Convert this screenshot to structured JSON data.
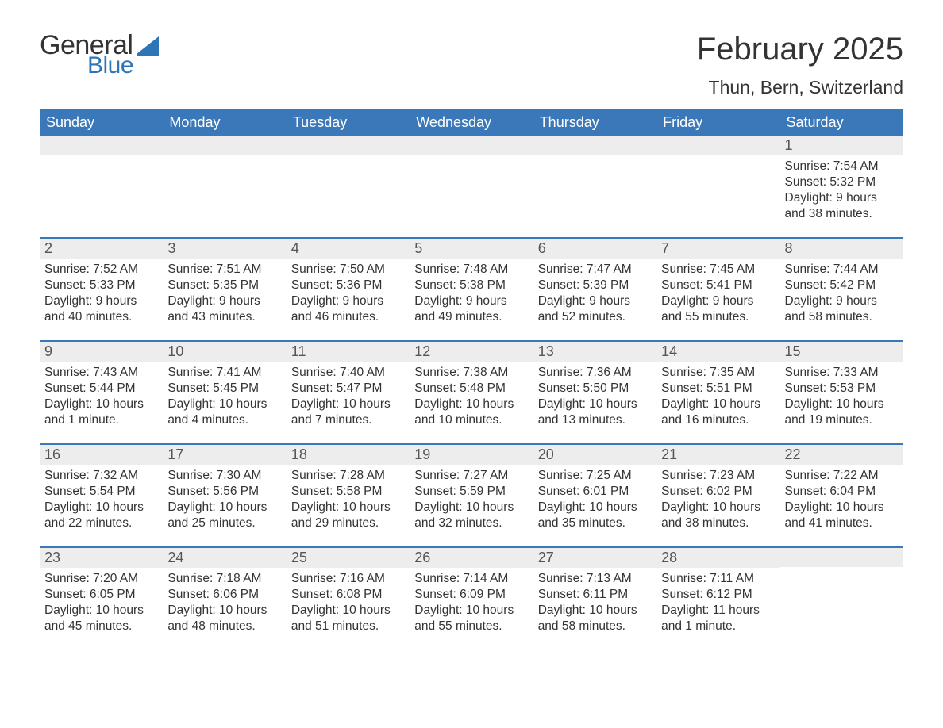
{
  "logo": {
    "word1": "General",
    "word2": "Blue",
    "sail_color": "#2e75b6",
    "text_gray": "#333333"
  },
  "header": {
    "title": "February 2025",
    "location": "Thun, Bern, Switzerland"
  },
  "style": {
    "header_bg": "#3a78b9",
    "header_text": "#ffffff",
    "daynum_bg": "#ededed",
    "week_border": "#3a78b9",
    "body_text": "#333333",
    "title_fontsize": 40,
    "location_fontsize": 23,
    "dow_fontsize": 18,
    "daynum_fontsize": 18,
    "body_fontsize": 15.5,
    "page_bg": "#ffffff"
  },
  "days_of_week": [
    "Sunday",
    "Monday",
    "Tuesday",
    "Wednesday",
    "Thursday",
    "Friday",
    "Saturday"
  ],
  "weeks": [
    [
      {
        "day": "",
        "sunrise": "",
        "sunset": "",
        "daylight": ""
      },
      {
        "day": "",
        "sunrise": "",
        "sunset": "",
        "daylight": ""
      },
      {
        "day": "",
        "sunrise": "",
        "sunset": "",
        "daylight": ""
      },
      {
        "day": "",
        "sunrise": "",
        "sunset": "",
        "daylight": ""
      },
      {
        "day": "",
        "sunrise": "",
        "sunset": "",
        "daylight": ""
      },
      {
        "day": "",
        "sunrise": "",
        "sunset": "",
        "daylight": ""
      },
      {
        "day": "1",
        "sunrise": "Sunrise: 7:54 AM",
        "sunset": "Sunset: 5:32 PM",
        "daylight": "Daylight: 9 hours and 38 minutes."
      }
    ],
    [
      {
        "day": "2",
        "sunrise": "Sunrise: 7:52 AM",
        "sunset": "Sunset: 5:33 PM",
        "daylight": "Daylight: 9 hours and 40 minutes."
      },
      {
        "day": "3",
        "sunrise": "Sunrise: 7:51 AM",
        "sunset": "Sunset: 5:35 PM",
        "daylight": "Daylight: 9 hours and 43 minutes."
      },
      {
        "day": "4",
        "sunrise": "Sunrise: 7:50 AM",
        "sunset": "Sunset: 5:36 PM",
        "daylight": "Daylight: 9 hours and 46 minutes."
      },
      {
        "day": "5",
        "sunrise": "Sunrise: 7:48 AM",
        "sunset": "Sunset: 5:38 PM",
        "daylight": "Daylight: 9 hours and 49 minutes."
      },
      {
        "day": "6",
        "sunrise": "Sunrise: 7:47 AM",
        "sunset": "Sunset: 5:39 PM",
        "daylight": "Daylight: 9 hours and 52 minutes."
      },
      {
        "day": "7",
        "sunrise": "Sunrise: 7:45 AM",
        "sunset": "Sunset: 5:41 PM",
        "daylight": "Daylight: 9 hours and 55 minutes."
      },
      {
        "day": "8",
        "sunrise": "Sunrise: 7:44 AM",
        "sunset": "Sunset: 5:42 PM",
        "daylight": "Daylight: 9 hours and 58 minutes."
      }
    ],
    [
      {
        "day": "9",
        "sunrise": "Sunrise: 7:43 AM",
        "sunset": "Sunset: 5:44 PM",
        "daylight": "Daylight: 10 hours and 1 minute."
      },
      {
        "day": "10",
        "sunrise": "Sunrise: 7:41 AM",
        "sunset": "Sunset: 5:45 PM",
        "daylight": "Daylight: 10 hours and 4 minutes."
      },
      {
        "day": "11",
        "sunrise": "Sunrise: 7:40 AM",
        "sunset": "Sunset: 5:47 PM",
        "daylight": "Daylight: 10 hours and 7 minutes."
      },
      {
        "day": "12",
        "sunrise": "Sunrise: 7:38 AM",
        "sunset": "Sunset: 5:48 PM",
        "daylight": "Daylight: 10 hours and 10 minutes."
      },
      {
        "day": "13",
        "sunrise": "Sunrise: 7:36 AM",
        "sunset": "Sunset: 5:50 PM",
        "daylight": "Daylight: 10 hours and 13 minutes."
      },
      {
        "day": "14",
        "sunrise": "Sunrise: 7:35 AM",
        "sunset": "Sunset: 5:51 PM",
        "daylight": "Daylight: 10 hours and 16 minutes."
      },
      {
        "day": "15",
        "sunrise": "Sunrise: 7:33 AM",
        "sunset": "Sunset: 5:53 PM",
        "daylight": "Daylight: 10 hours and 19 minutes."
      }
    ],
    [
      {
        "day": "16",
        "sunrise": "Sunrise: 7:32 AM",
        "sunset": "Sunset: 5:54 PM",
        "daylight": "Daylight: 10 hours and 22 minutes."
      },
      {
        "day": "17",
        "sunrise": "Sunrise: 7:30 AM",
        "sunset": "Sunset: 5:56 PM",
        "daylight": "Daylight: 10 hours and 25 minutes."
      },
      {
        "day": "18",
        "sunrise": "Sunrise: 7:28 AM",
        "sunset": "Sunset: 5:58 PM",
        "daylight": "Daylight: 10 hours and 29 minutes."
      },
      {
        "day": "19",
        "sunrise": "Sunrise: 7:27 AM",
        "sunset": "Sunset: 5:59 PM",
        "daylight": "Daylight: 10 hours and 32 minutes."
      },
      {
        "day": "20",
        "sunrise": "Sunrise: 7:25 AM",
        "sunset": "Sunset: 6:01 PM",
        "daylight": "Daylight: 10 hours and 35 minutes."
      },
      {
        "day": "21",
        "sunrise": "Sunrise: 7:23 AM",
        "sunset": "Sunset: 6:02 PM",
        "daylight": "Daylight: 10 hours and 38 minutes."
      },
      {
        "day": "22",
        "sunrise": "Sunrise: 7:22 AM",
        "sunset": "Sunset: 6:04 PM",
        "daylight": "Daylight: 10 hours and 41 minutes."
      }
    ],
    [
      {
        "day": "23",
        "sunrise": "Sunrise: 7:20 AM",
        "sunset": "Sunset: 6:05 PM",
        "daylight": "Daylight: 10 hours and 45 minutes."
      },
      {
        "day": "24",
        "sunrise": "Sunrise: 7:18 AM",
        "sunset": "Sunset: 6:06 PM",
        "daylight": "Daylight: 10 hours and 48 minutes."
      },
      {
        "day": "25",
        "sunrise": "Sunrise: 7:16 AM",
        "sunset": "Sunset: 6:08 PM",
        "daylight": "Daylight: 10 hours and 51 minutes."
      },
      {
        "day": "26",
        "sunrise": "Sunrise: 7:14 AM",
        "sunset": "Sunset: 6:09 PM",
        "daylight": "Daylight: 10 hours and 55 minutes."
      },
      {
        "day": "27",
        "sunrise": "Sunrise: 7:13 AM",
        "sunset": "Sunset: 6:11 PM",
        "daylight": "Daylight: 10 hours and 58 minutes."
      },
      {
        "day": "28",
        "sunrise": "Sunrise: 7:11 AM",
        "sunset": "Sunset: 6:12 PM",
        "daylight": "Daylight: 11 hours and 1 minute."
      },
      {
        "day": "",
        "sunrise": "",
        "sunset": "",
        "daylight": ""
      }
    ]
  ]
}
